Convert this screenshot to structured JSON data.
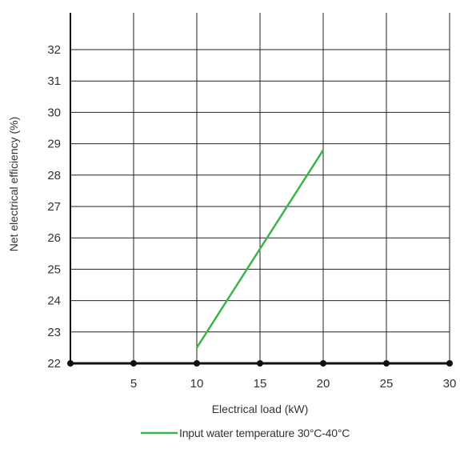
{
  "chart_data": {
    "type": "line",
    "title": "",
    "xlabel": "Electrical load (kW)",
    "ylabel": "Net electrical efficiency (%)",
    "xlim": [
      0,
      30
    ],
    "ylim": [
      22,
      33
    ],
    "x_ticks": [
      5,
      10,
      15,
      20,
      25,
      30
    ],
    "y_ticks": [
      22,
      23,
      24,
      25,
      26,
      27,
      28,
      29,
      30,
      31,
      32
    ],
    "grid": true,
    "legend_position": "bottom-center",
    "series": [
      {
        "name": "Input water temperature 30°C-40°C",
        "color": "#3cb44b",
        "x": [
          10,
          20
        ],
        "y": [
          22.5,
          28.8
        ]
      }
    ]
  }
}
